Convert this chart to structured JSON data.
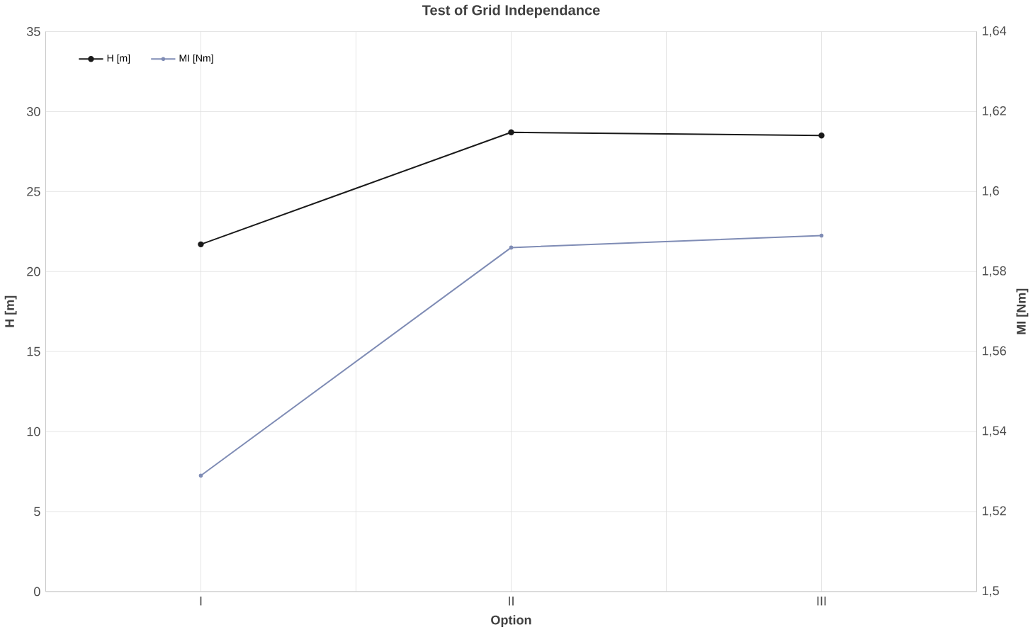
{
  "chart_data": {
    "type": "line",
    "title": "Test of Grid Independance",
    "xlabel": "Option",
    "ylabel": "H [m]",
    "y2label": "MI [Nm]",
    "categories": [
      "I",
      "II",
      "III"
    ],
    "series": [
      {
        "name": "H [m]",
        "color": "#1a1a1a",
        "values": [
          21.7,
          28.7,
          28.5
        ]
      },
      {
        "name": "MI [Nm]",
        "color": "#7f8cb5",
        "axis": "y2",
        "values": [
          1.529,
          1.586,
          1.589
        ]
      }
    ],
    "ylim": [
      0,
      35
    ],
    "yticks": [
      0,
      5,
      10,
      15,
      20,
      25,
      30,
      35
    ],
    "y2lim": [
      1.5,
      1.64
    ],
    "y2ticks": [
      {
        "value": 1.5,
        "label": "1,5"
      },
      {
        "value": 1.52,
        "label": "1,52"
      },
      {
        "value": 1.54,
        "label": "1,54"
      },
      {
        "value": 1.56,
        "label": "1,56"
      },
      {
        "value": 1.58,
        "label": "1,58"
      },
      {
        "value": 1.6,
        "label": "1,6"
      },
      {
        "value": 1.62,
        "label": "1,62"
      },
      {
        "value": 1.64,
        "label": "1,64"
      }
    ],
    "grid": true,
    "legend": "top left",
    "marker": "circle",
    "line_style": "solid"
  }
}
